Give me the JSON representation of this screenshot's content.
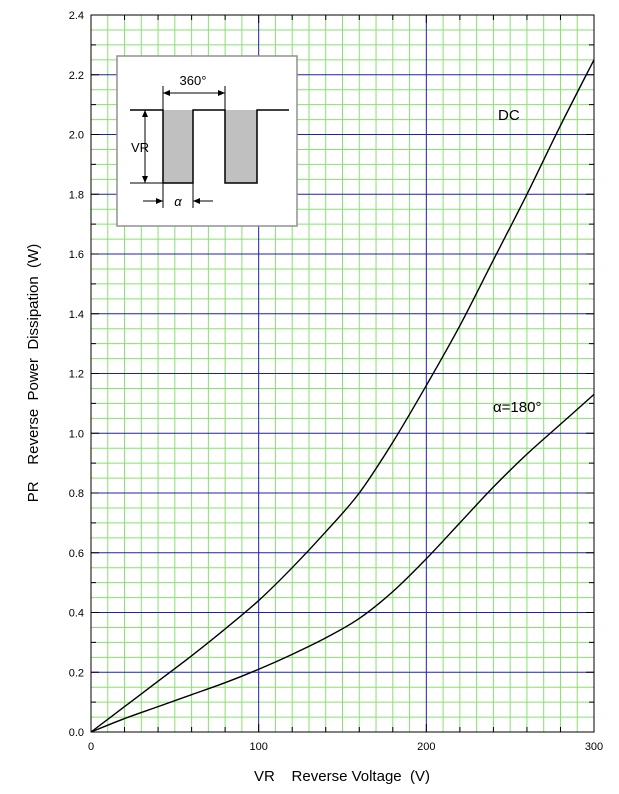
{
  "chart_data": {
    "type": "line",
    "xlabel": "VR    Reverse Voltage  (V)",
    "ylabel": "PR    Reverse  Power  Dissipation  (W)",
    "xlim": [
      0,
      300
    ],
    "ylim": [
      0,
      2.4
    ],
    "x_ticks": [
      "0",
      "100",
      "200",
      "300"
    ],
    "y_ticks": [
      "0.0",
      "0.2",
      "0.4",
      "0.6",
      "0.8",
      "1.0",
      "1.2",
      "1.4",
      "1.6",
      "1.8",
      "2.0",
      "2.2",
      "2.4"
    ],
    "grid": true,
    "series": [
      {
        "name": "DC",
        "x": [
          0,
          20,
          40,
          60,
          80,
          100,
          120,
          140,
          160,
          180,
          200,
          220,
          240,
          260,
          280,
          300
        ],
        "y": [
          0,
          0.085,
          0.17,
          0.255,
          0.345,
          0.44,
          0.55,
          0.67,
          0.8,
          0.97,
          1.16,
          1.36,
          1.58,
          1.8,
          2.03,
          2.25
        ]
      },
      {
        "name": "α=180°",
        "x": [
          0,
          20,
          40,
          60,
          80,
          100,
          120,
          140,
          160,
          180,
          200,
          220,
          240,
          260,
          280,
          300
        ],
        "y": [
          0,
          0.045,
          0.085,
          0.125,
          0.165,
          0.21,
          0.26,
          0.315,
          0.38,
          0.47,
          0.58,
          0.7,
          0.82,
          0.93,
          1.03,
          1.13
        ]
      }
    ],
    "inset": {
      "period_label": "360°",
      "amplitude_label": "VR",
      "width_label": "α"
    },
    "colors": {
      "major_grid": "#2020b0",
      "minor_grid": "#88e070",
      "curve": "#000000",
      "inset_fill": "#c0c0c0",
      "inset_bg": "#ffffff",
      "inset_border": "#909090"
    }
  }
}
